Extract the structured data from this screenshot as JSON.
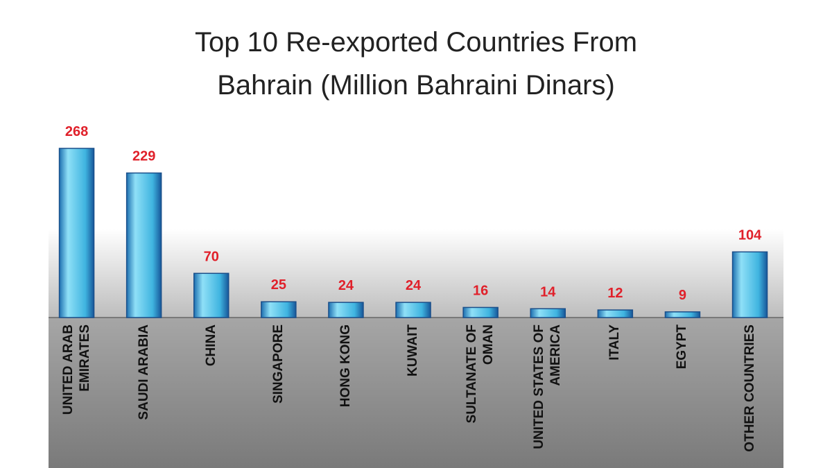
{
  "chart_data": {
    "type": "bar",
    "title": "Top 10 Re-exported Countries From Bahrain (Million Bahraini Dinars)",
    "categories": [
      "UNITED ARAB EMIRATES",
      "SAUDI ARABIA",
      "CHINA",
      "SINGAPORE",
      "HONG KONG",
      "KUWAIT",
      "SULTANATE OF OMAN",
      "UNITED STATES OF AMERICA",
      "ITALY",
      "EGYPT",
      "OTHER COUNTRIES"
    ],
    "values": [
      268,
      229,
      70,
      25,
      24,
      24,
      16,
      14,
      12,
      9,
      104
    ],
    "color": "#3fb4e0",
    "value_label_color": "#e0202a"
  }
}
